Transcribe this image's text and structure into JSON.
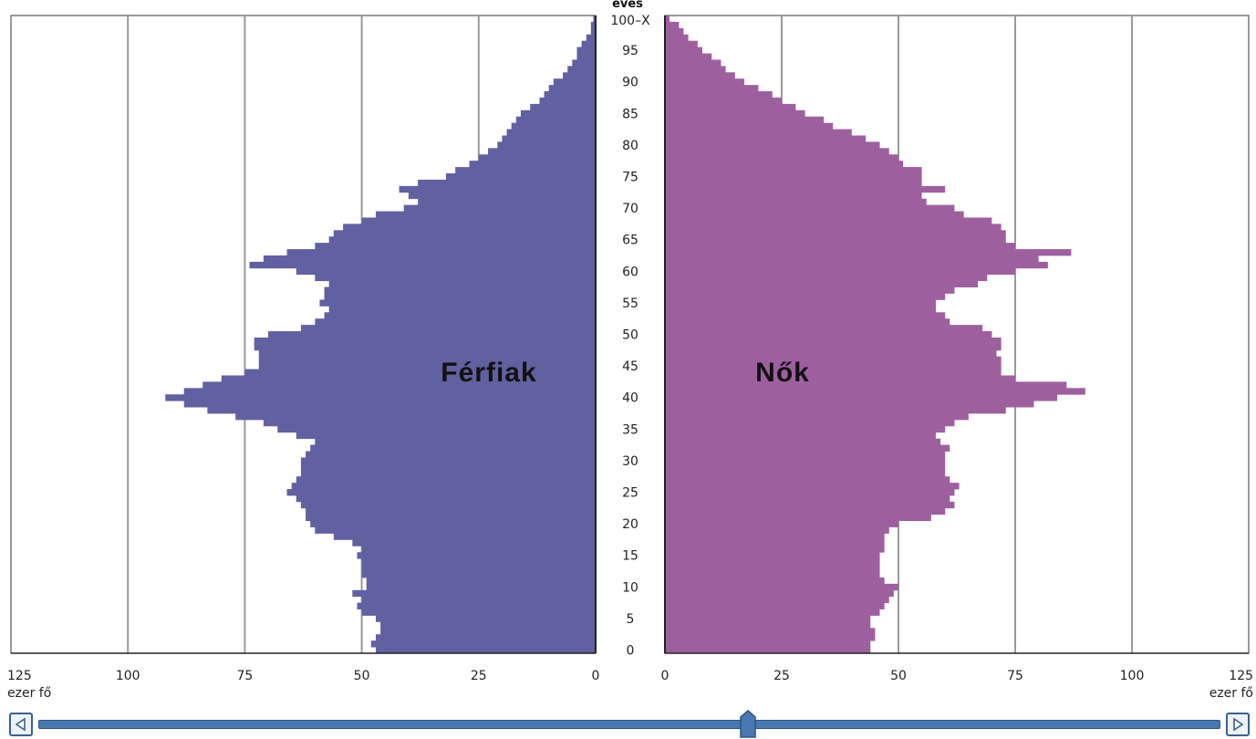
{
  "chart_data": {
    "type": "bar",
    "orientation": "horizontal-pyramid",
    "axis_title": "éves",
    "age_top_label": "100–X",
    "age_ticks": [
      0,
      5,
      10,
      15,
      20,
      25,
      30,
      35,
      40,
      45,
      50,
      55,
      60,
      65,
      70,
      75,
      80,
      85,
      90,
      95
    ],
    "x_ticks": [
      125,
      100,
      75,
      50,
      25,
      0
    ],
    "unit_label": "ezer fő",
    "xlim": [
      0,
      125
    ],
    "grid": true,
    "series": [
      {
        "name": "Férfiak",
        "color": "#6160a0",
        "values": [
          47,
          48,
          47,
          46,
          46,
          47,
          50,
          51,
          50,
          52,
          49,
          49,
          50,
          50,
          50,
          51,
          50,
          52,
          56,
          60,
          61,
          62,
          62,
          63,
          64,
          66,
          65,
          64,
          63,
          63,
          63,
          62,
          61,
          60,
          64,
          68,
          71,
          77,
          83,
          88,
          92,
          88,
          84,
          80,
          75,
          72,
          72,
          72,
          73,
          73,
          70,
          63,
          60,
          58,
          57,
          59,
          58,
          58,
          57,
          60,
          64,
          74,
          71,
          66,
          60,
          57,
          56,
          54,
          50,
          47,
          41,
          38,
          40,
          42,
          38,
          32,
          30,
          27,
          25,
          23,
          21,
          20,
          19,
          18,
          17,
          16,
          14,
          12,
          11,
          10,
          9,
          7,
          6,
          5,
          4,
          4,
          3,
          2,
          1,
          1,
          0.5
        ]
      },
      {
        "name": "Nők",
        "color": "#9e5f9f",
        "values": [
          44,
          44,
          45,
          45,
          44,
          44,
          46,
          47,
          48,
          49,
          50,
          47,
          46,
          46,
          46,
          46,
          47,
          47,
          47,
          48,
          50,
          57,
          60,
          62,
          61,
          62,
          63,
          61,
          60,
          60,
          60,
          60,
          61,
          59,
          58,
          60,
          62,
          65,
          73,
          79,
          84,
          90,
          86,
          75,
          72,
          72,
          72,
          71,
          72,
          72,
          70,
          68,
          61,
          60,
          58,
          58,
          60,
          62,
          67,
          69,
          75,
          82,
          80,
          87,
          75,
          73,
          73,
          72,
          70,
          64,
          62,
          56,
          55,
          60,
          55,
          55,
          55,
          51,
          50,
          48,
          46,
          43,
          40,
          36,
          34,
          30,
          28,
          25,
          23,
          20,
          17,
          15,
          13,
          12,
          10,
          8,
          7,
          5,
          4,
          3,
          1
        ]
      }
    ]
  },
  "scrollbar": {
    "left_icon": "arrow-left-icon",
    "right_icon": "arrow-right-icon",
    "position": 0.6
  }
}
